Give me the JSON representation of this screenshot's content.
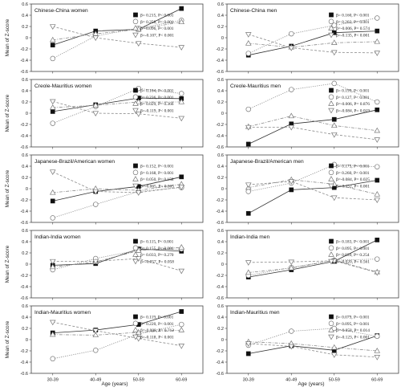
{
  "chart_data": {
    "type": "line",
    "categories": [
      "30-39",
      "40-49",
      "50-59",
      "60-69"
    ],
    "ylim": [
      -0.6,
      0.6
    ],
    "yticks": [
      "0.6",
      "0.4",
      "0.2",
      "0",
      "-0.2",
      "-0.4",
      "-0.6"
    ],
    "ylabel": "Mean of Z-score",
    "xlabel": "Age (years)",
    "legend_placement": "right",
    "markers": [
      "filled-square",
      "circle",
      "triangle-up",
      "triangle-down"
    ],
    "line_styles": [
      "solid",
      "dotted",
      "dashdot",
      "dashed"
    ],
    "panels": [
      {
        "title": "Chinese-China women",
        "series": [
          {
            "values": [
              -0.13,
              0.12,
              0.15,
              0.52
            ],
            "annotation": "β= 0.215, P< 0.001"
          },
          {
            "values": [
              -0.37,
              0.03,
              0.17,
              0.31
            ],
            "annotation": "β= 0.258, P< 0.001"
          },
          {
            "values": [
              -0.04,
              0.07,
              0.15,
              0.28
            ],
            "annotation": "β= 0.096, P< 0.001"
          },
          {
            "values": [
              0.2,
              0.0,
              -0.1,
              -0.17
            ],
            "annotation": "β=-0.107, P< 0.001"
          }
        ]
      },
      {
        "title": "Chinese-China men",
        "series": [
          {
            "values": [
              -0.31,
              -0.15,
              0.09,
              0.12
            ],
            "annotation": "β= 0.160, P< 0.001"
          },
          {
            "values": [
              -0.28,
              0.07,
              0.22,
              0.35
            ],
            "annotation": "β= 0.202, P< 0.001"
          },
          {
            "values": [
              -0.1,
              -0.17,
              -0.09,
              -0.07
            ],
            "annotation": "β=-0.006, P= 0.574"
          },
          {
            "values": [
              0.06,
              -0.18,
              -0.26,
              -0.27
            ],
            "annotation": "β=-0.135, P< 0.001"
          }
        ]
      },
      {
        "title": "Creole-Mauritius women",
        "series": [
          {
            "values": [
              0.03,
              0.15,
              0.27,
              0.26
            ],
            "annotation": "β= 0.104, P< 0.001"
          },
          {
            "values": [
              -0.18,
              0.12,
              0.44,
              0.35
            ],
            "annotation": "β= 0.236, P< 0.001"
          },
          {
            "values": [
              0.1,
              0.14,
              0.2,
              0.2
            ],
            "annotation": "β= 0.029, P= 0.366"
          },
          {
            "values": [
              0.21,
              0.0,
              -0.01,
              -0.09
            ],
            "annotation": "β=-0.119, P< 0.001"
          }
        ]
      },
      {
        "title": "Creole-Mauritius men",
        "series": [
          {
            "values": [
              -0.55,
              -0.19,
              -0.11,
              0.06
            ],
            "annotation": "β= 0.199, P< 0.001"
          },
          {
            "values": [
              0.07,
              0.42,
              0.53,
              0.2
            ],
            "annotation": "β= 0.127, P< 0.001"
          },
          {
            "values": [
              -0.24,
              -0.05,
              -0.22,
              -0.31
            ],
            "annotation": "β=-0.006, P= 0.876"
          },
          {
            "values": [
              -0.25,
              -0.25,
              -0.38,
              -0.47
            ],
            "annotation": "β=-0.084, P= 0.019"
          }
        ]
      },
      {
        "title": "Japanese-Brazil/American women",
        "series": [
          {
            "values": [
              -0.22,
              -0.05,
              0.04,
              0.21
            ],
            "annotation": "β= 0.152, P< 0.001"
          },
          {
            "values": [
              -0.52,
              -0.28,
              -0.05,
              0.02
            ],
            "annotation": "β= 0.168, P< 0.001"
          },
          {
            "values": [
              -0.07,
              0.0,
              -0.03,
              0.08
            ],
            "annotation": "β= 0.050, P= 0.158"
          },
          {
            "values": [
              0.3,
              -0.05,
              -0.07,
              0.03
            ],
            "annotation": "β=-0.065, P= 0.065"
          }
        ]
      },
      {
        "title": "Japanese-Brazil/American men",
        "series": [
          {
            "values": [
              -0.44,
              -0.02,
              0.02,
              0.15
            ],
            "annotation": "β= 0.175, P< 0.001"
          },
          {
            "values": [
              -0.05,
              0.1,
              0.43,
              0.39
            ],
            "annotation": "β= 0.260, P< 0.001"
          },
          {
            "values": [
              0.02,
              0.16,
              0.08,
              -0.1
            ],
            "annotation": "β=-0.084, P= 0.025"
          },
          {
            "values": [
              0.07,
              0.13,
              -0.16,
              -0.2
            ],
            "annotation": "β=-0.152, P< 0.001"
          }
        ]
      },
      {
        "title": "Indian-India women",
        "series": [
          {
            "values": [
              -0.02,
              0.01,
              0.27,
              0.23
            ],
            "annotation": "β= 0.115, P< 0.001"
          },
          {
            "values": [
              -0.1,
              0.1,
              0.25,
              0.27
            ],
            "annotation": "β= 0.155, P< 0.001"
          },
          {
            "values": [
              -0.05,
              0.04,
              0.24,
              0.3
            ],
            "annotation": "β= 0.033, P= 0.270"
          },
          {
            "values": [
              0.05,
              0.05,
              0.1,
              -0.12
            ],
            "annotation": "β=-0.057, P= 0.058"
          }
        ]
      },
      {
        "title": "Indian-India men",
        "series": [
          {
            "values": [
              -0.23,
              -0.1,
              0.05,
              0.43
            ],
            "annotation": "β= 0.183, P< 0.001"
          },
          {
            "values": [
              -0.2,
              -0.06,
              0.07,
              0.09
            ],
            "annotation": "β= 0.095, P< 0.001"
          },
          {
            "values": [
              -0.15,
              -0.07,
              0.07,
              -0.14
            ],
            "annotation": "β= 0.039, P= 0.254"
          },
          {
            "values": [
              0.03,
              0.04,
              0.06,
              -0.15
            ],
            "annotation": "β=-0.020, P= 0.561"
          }
        ]
      },
      {
        "title": "Indian-Mauritius women",
        "series": [
          {
            "values": [
              0.12,
              0.17,
              0.27,
              0.5
            ],
            "annotation": "β= 0.119, P< 0.001"
          },
          {
            "values": [
              -0.34,
              -0.19,
              0.1,
              0.27
            ],
            "annotation": "β= 0.220, P< 0.001"
          },
          {
            "values": [
              0.09,
              0.08,
              0.13,
              0.17
            ],
            "annotation": "β=-0.008, P= 0.712"
          },
          {
            "values": [
              0.31,
              0.16,
              0.02,
              -0.11
            ],
            "annotation": "β=-0.118, P< 0.001"
          }
        ]
      },
      {
        "title": "Indian-Mauritius men",
        "series": [
          {
            "values": [
              -0.25,
              -0.11,
              -0.19,
              0.07
            ],
            "annotation": "β= 0.079, P= 0.001"
          },
          {
            "values": [
              -0.1,
              0.15,
              0.2,
              0.06
            ],
            "annotation": "β= 0.095, P= 0.001"
          },
          {
            "values": [
              -0.04,
              -0.07,
              -0.14,
              -0.2
            ],
            "annotation": "β=-0.058, P= 0.014"
          },
          {
            "values": [
              -0.07,
              -0.12,
              -0.27,
              -0.31
            ],
            "annotation": "β=-0.123, P< 0.001"
          }
        ]
      }
    ]
  }
}
